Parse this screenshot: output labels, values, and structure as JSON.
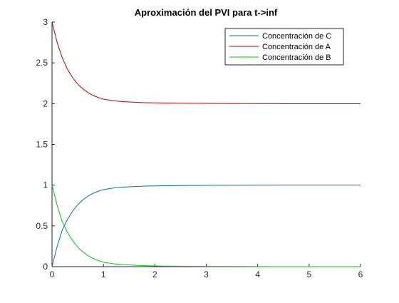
{
  "chart_data": {
    "type": "line",
    "title": "Aproximación del PVI para t->inf",
    "xlabel": "",
    "ylabel": "",
    "xlim": [
      0,
      6
    ],
    "ylim": [
      0,
      3
    ],
    "xticks": [
      0,
      1,
      2,
      3,
      4,
      5,
      6
    ],
    "xtick_labels": [
      "0",
      "1",
      "2",
      "3",
      "4",
      "5",
      "6"
    ],
    "yticks": [
      0,
      0.5,
      1,
      1.5,
      2,
      2.5,
      3
    ],
    "ytick_labels": [
      "0",
      "0.5",
      "1",
      "1.5",
      "2",
      "2.5",
      "3"
    ],
    "grid": false,
    "legend_position": "top-right",
    "x": [
      0,
      0.1,
      0.2,
      0.3,
      0.4,
      0.5,
      0.6,
      0.7,
      0.8,
      0.9,
      1.0,
      1.2,
      1.4,
      1.6,
      1.8,
      2.0,
      2.2,
      2.5,
      3.0,
      3.5,
      4.0,
      4.5,
      5.0,
      5.5,
      6.0
    ],
    "series": [
      {
        "name": "Concentración de C",
        "color": "#0072BD",
        "values": [
          0,
          0.25,
          0.45,
          0.58,
          0.68,
          0.76,
          0.82,
          0.865,
          0.9,
          0.925,
          0.945,
          0.965,
          0.976,
          0.983,
          0.988,
          0.991,
          0.993,
          0.995,
          0.997,
          0.998,
          0.999,
          1.0,
          1.0,
          1.0,
          1.0
        ]
      },
      {
        "name": "Concentración de A",
        "color": "#C00000",
        "values": [
          3.0,
          2.75,
          2.56,
          2.42,
          2.32,
          2.24,
          2.18,
          2.135,
          2.1,
          2.075,
          2.055,
          2.035,
          2.024,
          2.017,
          2.012,
          2.009,
          2.007,
          2.005,
          2.003,
          2.002,
          2.001,
          2.0,
          2.0,
          2.0,
          2.0
        ]
      },
      {
        "name": "Concentración de B",
        "color": "#00CC00",
        "values": [
          1.0,
          0.75,
          0.55,
          0.42,
          0.32,
          0.24,
          0.18,
          0.135,
          0.1,
          0.075,
          0.055,
          0.035,
          0.024,
          0.017,
          0.012,
          0.009,
          0.007,
          0.005,
          0.003,
          0.002,
          0.001,
          0.0,
          0.0,
          0.0,
          0.0
        ]
      }
    ]
  }
}
